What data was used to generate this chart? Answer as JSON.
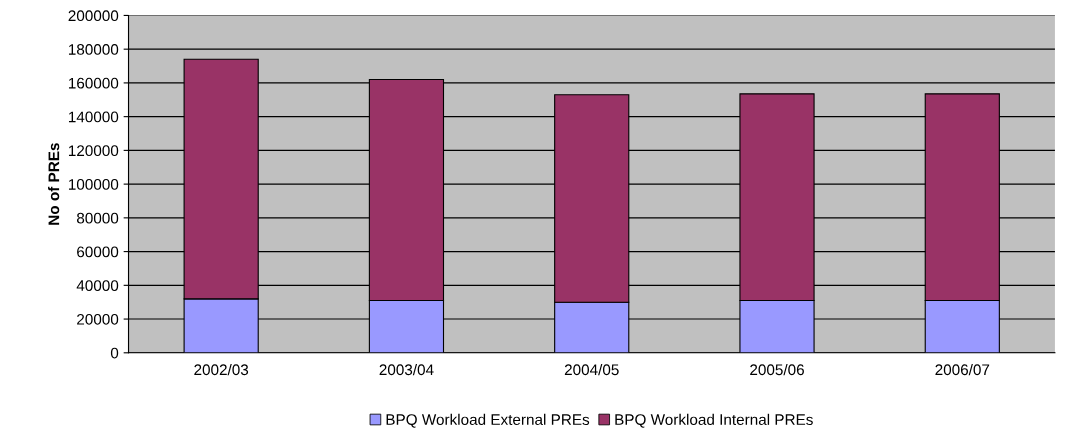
{
  "chart_data": {
    "type": "bar",
    "ylabel": "No of PREs",
    "categories": [
      "2002/03",
      "2003/04",
      "2004/05",
      "2005/06",
      "2006/07"
    ],
    "stacked": true,
    "series": [
      {
        "name": "BPQ Workload External PREs",
        "color": "#9999ff",
        "values": [
          32000,
          31000,
          30000,
          31000,
          31000
        ]
      },
      {
        "name": "BPQ Workload Internal PREs",
        "color": "#993366",
        "values": [
          142000,
          131000,
          123000,
          122500,
          122500
        ]
      }
    ],
    "ylim": [
      0,
      200000
    ],
    "yticks": [
      0,
      20000,
      40000,
      60000,
      80000,
      100000,
      120000,
      140000,
      160000,
      180000,
      200000
    ],
    "grid": "y",
    "legend": "bottom"
  }
}
